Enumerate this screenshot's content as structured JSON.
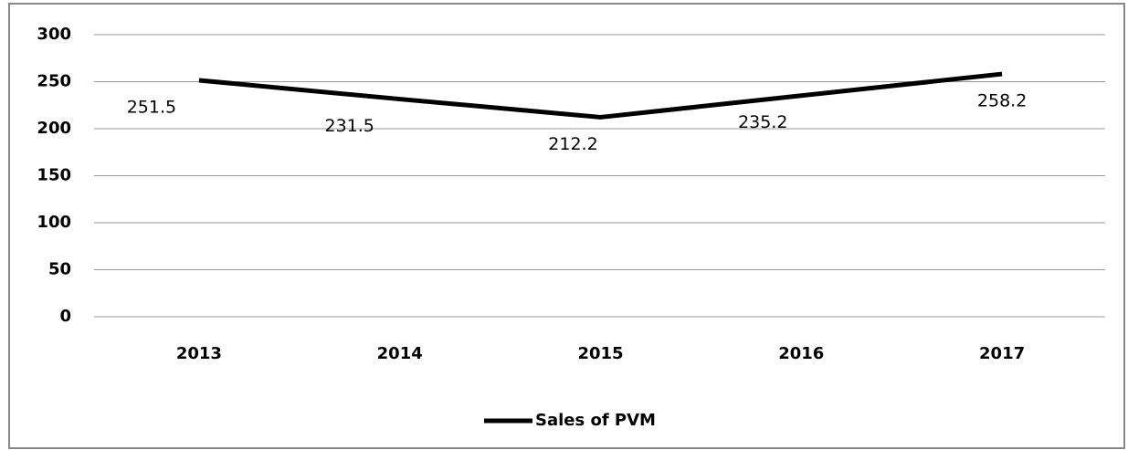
{
  "chart_data": {
    "type": "line",
    "categories": [
      "2013",
      "2014",
      "2015",
      "2016",
      "2017"
    ],
    "series": [
      {
        "name": "Sales of PVM",
        "color": "#000000",
        "values": [
          251.5,
          231.5,
          212.2,
          235.2,
          258.2
        ]
      }
    ],
    "ylim": [
      0,
      300
    ],
    "yticks": [
      0,
      50,
      100,
      150,
      200,
      250,
      300
    ],
    "grid": true,
    "legend": "bottom"
  }
}
